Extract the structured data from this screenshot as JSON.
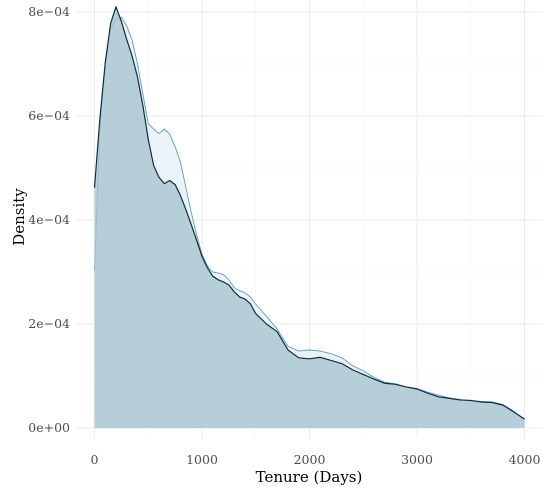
{
  "chart_data": {
    "type": "area",
    "xlabel": "Tenure (Days)",
    "ylabel": "Density",
    "xlim": [
      -60,
      4060
    ],
    "ylim": [
      0,
      0.00081
    ],
    "x_ticks": [
      {
        "value": 0,
        "label": "0"
      },
      {
        "value": 1000,
        "label": "1000"
      },
      {
        "value": 2000,
        "label": "2000"
      },
      {
        "value": 3000,
        "label": "3000"
      },
      {
        "value": 4000,
        "label": "4000"
      }
    ],
    "y_ticks": [
      {
        "value": 0,
        "label": "0e+00"
      },
      {
        "value": 0.0002,
        "label": "2e−04"
      },
      {
        "value": 0.0004,
        "label": "4e−04"
      },
      {
        "value": 0.0006,
        "label": "6e−04"
      },
      {
        "value": 0.0008,
        "label": "8e−04"
      }
    ],
    "grid": true,
    "legend": "none",
    "series": [
      {
        "fill": "#deebf4",
        "stroke": "#5a9ec4",
        "fill_opacity": 0.6,
        "points": [
          [
            0,
            0.000303
          ],
          [
            50,
            0.000575
          ],
          [
            100,
            0.000705
          ],
          [
            150,
            0.000768
          ],
          [
            200,
            0.000786
          ],
          [
            250,
            0.00079
          ],
          [
            300,
            0.000773
          ],
          [
            350,
            0.000746
          ],
          [
            400,
            0.0007
          ],
          [
            450,
            0.000642
          ],
          [
            500,
            0.000585
          ],
          [
            550,
            0.000575
          ],
          [
            600,
            0.000566
          ],
          [
            650,
            0.000575
          ],
          [
            700,
            0.000565
          ],
          [
            750,
            0.000541
          ],
          [
            800,
            0.000511
          ],
          [
            850,
            0.000462
          ],
          [
            900,
            0.000415
          ],
          [
            950,
            0.000371
          ],
          [
            1000,
            0.000334
          ],
          [
            1050,
            0.000312
          ],
          [
            1100,
            0.0003
          ],
          [
            1150,
            0.000298
          ],
          [
            1200,
            0.000295
          ],
          [
            1250,
            0.000285
          ],
          [
            1300,
            0.00027
          ],
          [
            1350,
            0.000264
          ],
          [
            1400,
            0.00026
          ],
          [
            1450,
            0.000252
          ],
          [
            1500,
            0.000238
          ],
          [
            1600,
            0.000215
          ],
          [
            1700,
            0.00019
          ],
          [
            1800,
            0.000157
          ],
          [
            1900,
            0.000148
          ],
          [
            2000,
            0.00015
          ],
          [
            2100,
            0.000148
          ],
          [
            2200,
            0.000143
          ],
          [
            2300,
            0.000135
          ],
          [
            2400,
            0.00012
          ],
          [
            2500,
            0.00011
          ],
          [
            2600,
            9.7e-05
          ],
          [
            2700,
            8.8e-05
          ],
          [
            2800,
            8.5e-05
          ],
          [
            2900,
            7.9e-05
          ],
          [
            3000,
            7.6e-05
          ],
          [
            3100,
            6.9e-05
          ],
          [
            3200,
            6.3e-05
          ],
          [
            3300,
            5.8e-05
          ],
          [
            3400,
            5.5e-05
          ],
          [
            3500,
            5.2e-05
          ],
          [
            3600,
            5.1e-05
          ],
          [
            3700,
            5e-05
          ],
          [
            3800,
            4.5e-05
          ],
          [
            3900,
            3.2e-05
          ],
          [
            4000,
            1.5e-05
          ]
        ]
      },
      {
        "fill": "#a9c4cf",
        "stroke": "#0b2f40",
        "fill_opacity": 0.8,
        "points": [
          [
            0,
            0.000462
          ],
          [
            50,
            0.000595
          ],
          [
            100,
            0.000702
          ],
          [
            150,
            0.000778
          ],
          [
            200,
            0.00081
          ],
          [
            250,
            0.000782
          ],
          [
            300,
            0.000747
          ],
          [
            350,
            0.000715
          ],
          [
            400,
            0.000675
          ],
          [
            450,
            0.00062
          ],
          [
            500,
            0.000555
          ],
          [
            550,
            0.000505
          ],
          [
            600,
            0.000482
          ],
          [
            650,
            0.00047
          ],
          [
            700,
            0.000476
          ],
          [
            750,
            0.000468
          ],
          [
            800,
            0.000447
          ],
          [
            850,
            0.00042
          ],
          [
            900,
            0.000391
          ],
          [
            950,
            0.000361
          ],
          [
            1000,
            0.00033
          ],
          [
            1050,
            0.000308
          ],
          [
            1100,
            0.000292
          ],
          [
            1150,
            0.000285
          ],
          [
            1200,
            0.000281
          ],
          [
            1250,
            0.000275
          ],
          [
            1300,
            0.000262
          ],
          [
            1350,
            0.000252
          ],
          [
            1400,
            0.000248
          ],
          [
            1450,
            0.000239
          ],
          [
            1500,
            0.00022
          ],
          [
            1600,
            0.0002
          ],
          [
            1700,
            0.000185
          ],
          [
            1800,
            0.00015
          ],
          [
            1900,
            0.000135
          ],
          [
            2000,
            0.000133
          ],
          [
            2100,
            0.000136
          ],
          [
            2200,
            0.00013
          ],
          [
            2300,
            0.000124
          ],
          [
            2400,
            0.000112
          ],
          [
            2500,
            0.000103
          ],
          [
            2600,
            9.4e-05
          ],
          [
            2700,
            8.6e-05
          ],
          [
            2800,
            8.4e-05
          ],
          [
            2900,
            7.9e-05
          ],
          [
            3000,
            7.5e-05
          ],
          [
            3100,
            6.7e-05
          ],
          [
            3200,
            6e-05
          ],
          [
            3300,
            5.7e-05
          ],
          [
            3400,
            5.4e-05
          ],
          [
            3500,
            5.3e-05
          ],
          [
            3600,
            5e-05
          ],
          [
            3700,
            4.9e-05
          ],
          [
            3800,
            4.4e-05
          ],
          [
            3900,
            3.1e-05
          ],
          [
            4000,
            1.7e-05
          ]
        ]
      }
    ]
  }
}
